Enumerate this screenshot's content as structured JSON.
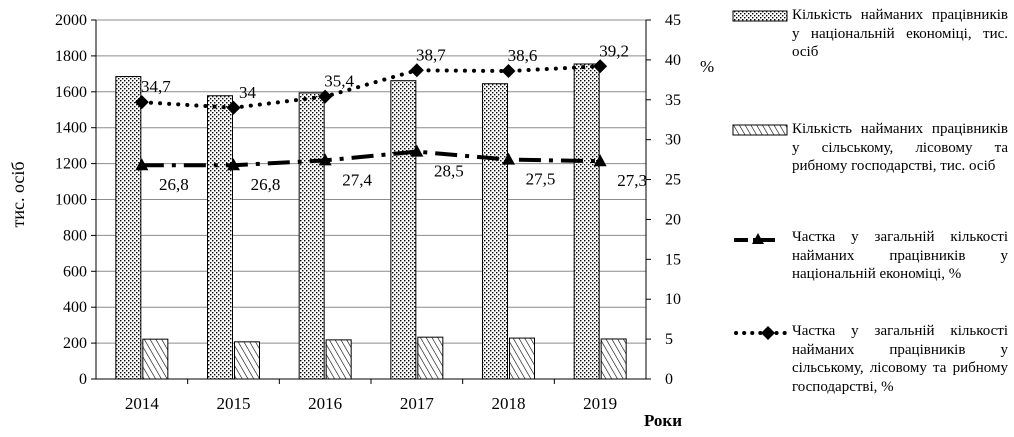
{
  "chart_data": {
    "type": "bar",
    "categories": [
      "2014",
      "2015",
      "2016",
      "2017",
      "2018",
      "2019"
    ],
    "xlabel": "Роки",
    "ylabel": "тис. осіб",
    "y2label": "%",
    "ylim": [
      0,
      2000
    ],
    "y2lim": [
      0,
      45
    ],
    "yticks": [
      "0",
      "200",
      "400",
      "600",
      "800",
      "1000",
      "1200",
      "1400",
      "1600",
      "1800",
      "2000"
    ],
    "y2ticks": [
      "0",
      "5",
      "10",
      "15",
      "20",
      "25",
      "30",
      "35",
      "40",
      "45"
    ],
    "grid": true,
    "legend_position": "right",
    "series": [
      {
        "name": "Кількість найманих працівників у національній економіці, тис. осіб",
        "type": "bar",
        "axis": "left",
        "pattern": "dots",
        "values": [
          1685,
          1578,
          1594,
          1662,
          1645,
          1755
        ]
      },
      {
        "name": "Кількість найманих працівників у сільському, лісовому та рибному господарстві, тис. осіб",
        "type": "bar",
        "axis": "left",
        "pattern": "diagonal-hatch",
        "values": [
          222,
          207,
          218,
          233,
          228,
          223
        ]
      },
      {
        "name": "Частка у загальній кількості найманих працівників у національній економіці, %",
        "type": "line",
        "axis": "right",
        "style": "dash-dot",
        "marker": "triangle",
        "values": [
          26.8,
          26.8,
          27.4,
          28.5,
          27.5,
          27.3
        ],
        "labels": [
          "26,8",
          "26,8",
          "27,4",
          "28,5",
          "27,5",
          "27,3"
        ]
      },
      {
        "name": "Частка у загальній кількості найманих працівників у сільському, лісовому та рибному господарстві, %",
        "type": "line",
        "axis": "right",
        "style": "dotted",
        "marker": "diamond",
        "values": [
          34.7,
          34,
          35.4,
          38.7,
          38.6,
          39.2
        ],
        "labels": [
          "34,7",
          "34",
          "35,4",
          "38,7",
          "38,6",
          "39,2"
        ]
      }
    ]
  },
  "colors": {
    "ink": "#000000",
    "grid": "#8c8c8c",
    "background": "#ffffff"
  }
}
